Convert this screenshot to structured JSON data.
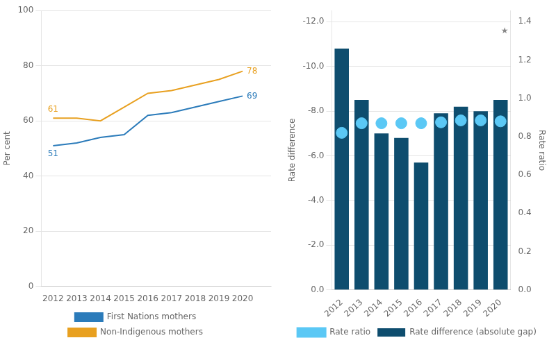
{
  "chart_data": [
    {
      "type": "line",
      "x": [
        2012,
        2013,
        2014,
        2015,
        2016,
        2017,
        2018,
        2019,
        2020
      ],
      "series": [
        {
          "name": "First Nations mothers",
          "color": "#2b7bba",
          "values": [
            51,
            52,
            54,
            55,
            62,
            63,
            65,
            67,
            69
          ]
        },
        {
          "name": "Non-Indigenous mothers",
          "color": "#e8a020",
          "values": [
            61,
            61,
            60,
            65,
            70,
            71,
            73,
            75,
            78
          ]
        }
      ],
      "y_label": "Per cent",
      "xlim": [
        2011.5,
        2021.2
      ],
      "xticks": [
        2012,
        2013,
        2014,
        2015,
        2016,
        2017,
        2018,
        2019,
        2020
      ],
      "ylim": [
        0,
        100
      ],
      "yticks": [
        0,
        20,
        40,
        60,
        80,
        100
      ],
      "grid": "y",
      "legend": "bottom",
      "annotations": [
        {
          "text": "61",
          "x": 2012,
          "y": 61,
          "series": "Non-Indigenous mothers"
        },
        {
          "text": "51",
          "x": 2012,
          "y": 51,
          "series": "First Nations mothers"
        },
        {
          "text": "78",
          "x": 2020,
          "y": 78,
          "series": "Non-Indigenous mothers"
        },
        {
          "text": "69",
          "x": 2020,
          "y": 69,
          "series": "First Nations mothers"
        }
      ]
    },
    {
      "type": "bar",
      "categories": [
        "2012",
        "2013",
        "2014",
        "2015",
        "2016",
        "2017",
        "2018",
        "2019",
        "2020"
      ],
      "series": [
        {
          "name": "Rate difference (absolute gap)",
          "type": "bar",
          "color": "#0e4d6e",
          "values": [
            -10.8,
            -8.5,
            -7.0,
            -6.8,
            -5.7,
            -7.9,
            -8.2,
            -8.0,
            -8.5
          ]
        },
        {
          "name": "Rate ratio",
          "type": "scatter",
          "marker": "circle",
          "color": "#5bc8f5",
          "axis": "y2",
          "values": [
            0.82,
            0.87,
            0.87,
            0.87,
            0.87,
            0.875,
            0.885,
            0.885,
            0.88
          ]
        }
      ],
      "y_label": "Rate difference",
      "y2_label": "Rate ratio",
      "ylim": [
        0,
        -12.5
      ],
      "yticks": [
        {
          "value": 0.0,
          "label": "0.0"
        },
        {
          "value": -2.0,
          "label": "-2.0"
        },
        {
          "value": -4.0,
          "label": "-4.0"
        },
        {
          "value": -6.0,
          "label": "-6.0"
        },
        {
          "value": -8.0,
          "label": "-8.0"
        },
        {
          "value": -10.0,
          "label": "-10.0"
        },
        {
          "value": -12.0,
          "label": "-12.0"
        }
      ],
      "y2lim": [
        0.0,
        1.4583
      ],
      "y2ticks": [
        {
          "value": 0.0,
          "label": "0.0"
        },
        0.2,
        0.4,
        0.6,
        0.8,
        {
          "value": 1.0,
          "label": "1.0"
        },
        1.2,
        1.4
      ],
      "grid": "y",
      "legend": "bottom",
      "annotations": [
        {
          "text": "★",
          "y": 1.35,
          "axis": "y2"
        }
      ]
    }
  ]
}
